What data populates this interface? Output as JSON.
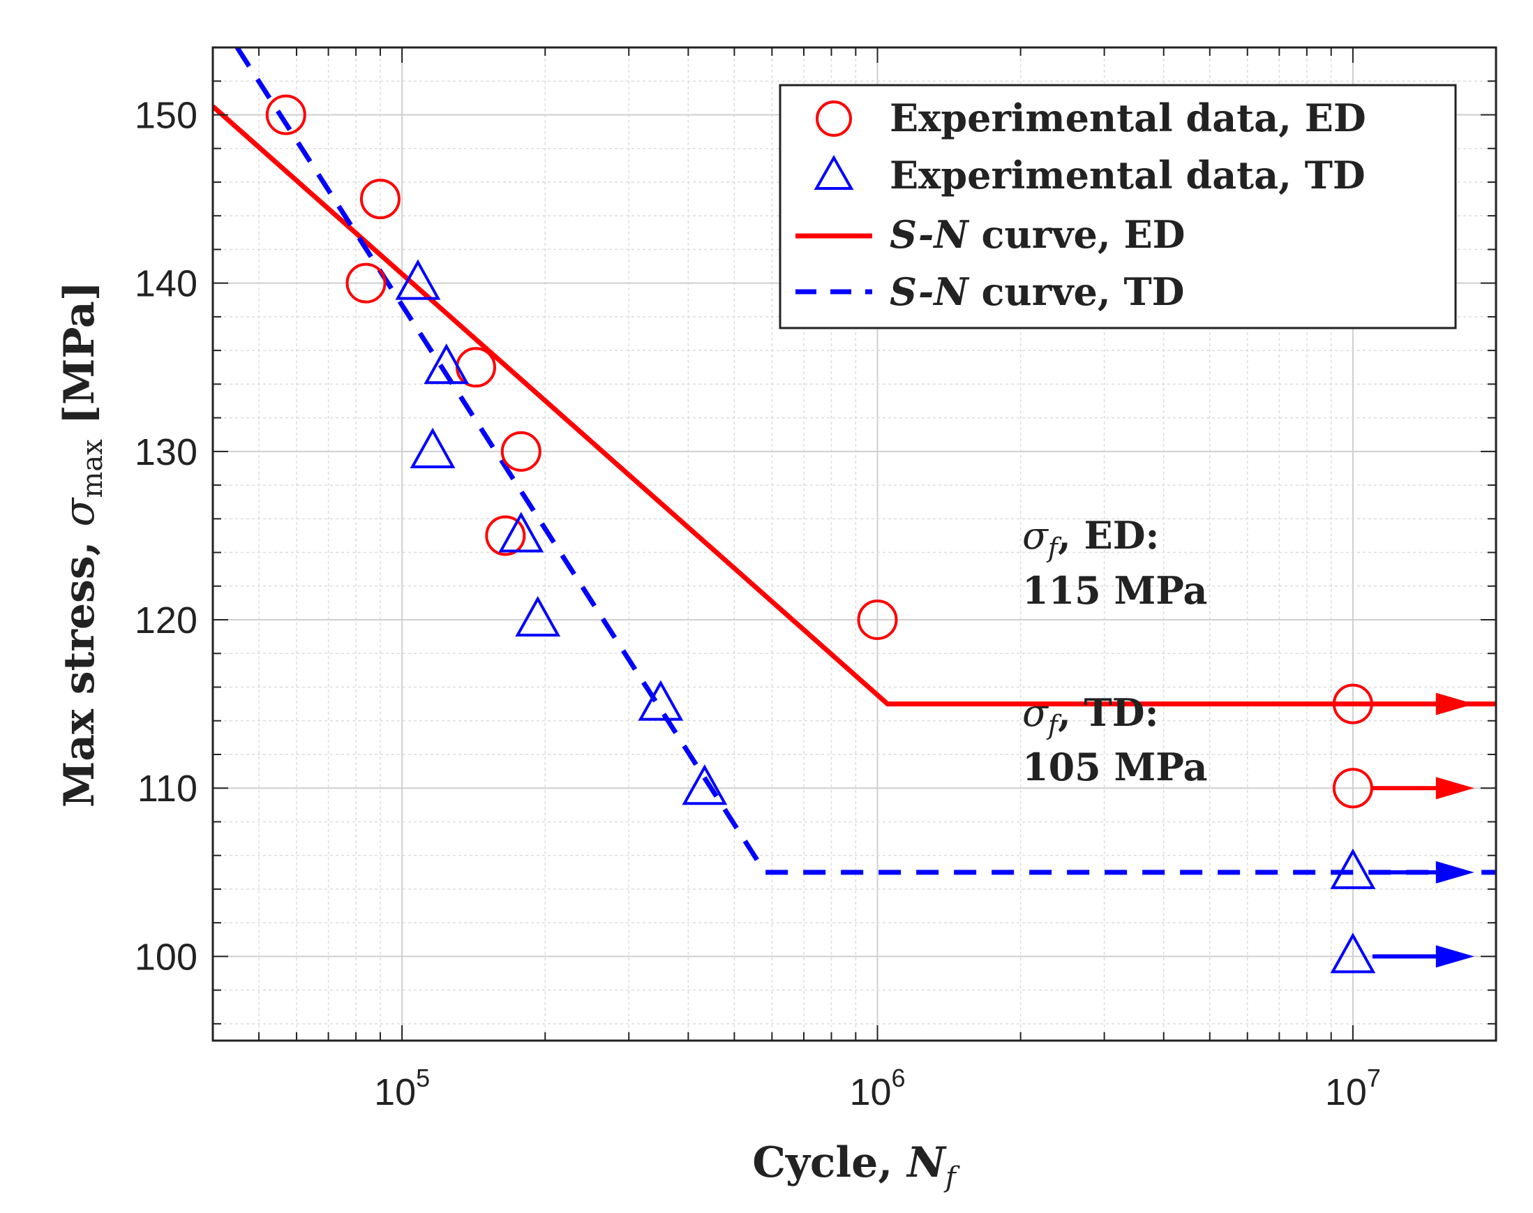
{
  "chart_data": {
    "type": "scatter",
    "title": "",
    "xlabel_prefix": "Cycle, ",
    "xlabel_symbol": "N",
    "xlabel_subscript": "f",
    "ylabel_prefix": "Max stress, ",
    "ylabel_symbol": "σ",
    "ylabel_subscript": "max",
    "ylabel_unit": " [MPa]",
    "xscale": "log",
    "xlim": [
      40000,
      20000000
    ],
    "ylim": [
      95,
      154
    ],
    "grid": true,
    "yticks": [
      "100",
      "110",
      "120",
      "130",
      "140",
      "150"
    ],
    "xticks": [
      {
        "base": "10",
        "exp": "5",
        "value": 100000
      },
      {
        "base": "10",
        "exp": "6",
        "value": 1000000
      },
      {
        "base": "10",
        "exp": "7",
        "value": 10000000
      }
    ],
    "legend_position": "top-right",
    "series": [
      {
        "name": "Experimental data, ED",
        "kind": "scatter",
        "marker": "circle",
        "color": "#ff0000",
        "points": [
          [
            57000,
            150
          ],
          [
            84000,
            140
          ],
          [
            90000,
            145
          ],
          [
            143000,
            135
          ],
          [
            165000,
            125
          ],
          [
            178000,
            130
          ],
          [
            1000000,
            120
          ]
        ]
      },
      {
        "name": "Experimental data, TD",
        "kind": "scatter",
        "marker": "triangle",
        "color": "#0000ff",
        "points": [
          [
            108000,
            140
          ],
          [
            116000,
            130
          ],
          [
            124000,
            135
          ],
          [
            178000,
            125
          ],
          [
            193000,
            120
          ],
          [
            350000,
            115
          ],
          [
            433000,
            110
          ]
        ]
      },
      {
        "name_italic": "S-N",
        "name_rest": " curve, ED",
        "kind": "line",
        "style": "solid",
        "color": "#ff0000",
        "points": [
          [
            40000,
            150.5
          ],
          [
            1050000,
            115
          ],
          [
            20000000,
            115
          ]
        ]
      },
      {
        "name_italic": "S-N",
        "name_rest": " curve, TD",
        "kind": "line",
        "style": "dashed",
        "color": "#0000ff",
        "points": [
          [
            45000,
            154
          ],
          [
            580000,
            105
          ],
          [
            20000000,
            105
          ]
        ]
      }
    ],
    "runouts": [
      {
        "x": 10000000,
        "y": 115,
        "marker": "circle",
        "color": "#ff0000"
      },
      {
        "x": 10000000,
        "y": 110,
        "marker": "circle",
        "color": "#ff0000"
      },
      {
        "x": 10000000,
        "y": 105,
        "marker": "triangle",
        "color": "#0000ff"
      },
      {
        "x": 10000000,
        "y": 100,
        "marker": "triangle",
        "color": "#0000ff"
      }
    ],
    "annotations": [
      {
        "symbol": "σ",
        "sub": "f",
        "line1_rest": ", ED:",
        "line2": "115 MPa"
      },
      {
        "symbol": "σ",
        "sub": "f",
        "line1_rest": ", TD:",
        "line2": "105 MPa"
      }
    ]
  }
}
